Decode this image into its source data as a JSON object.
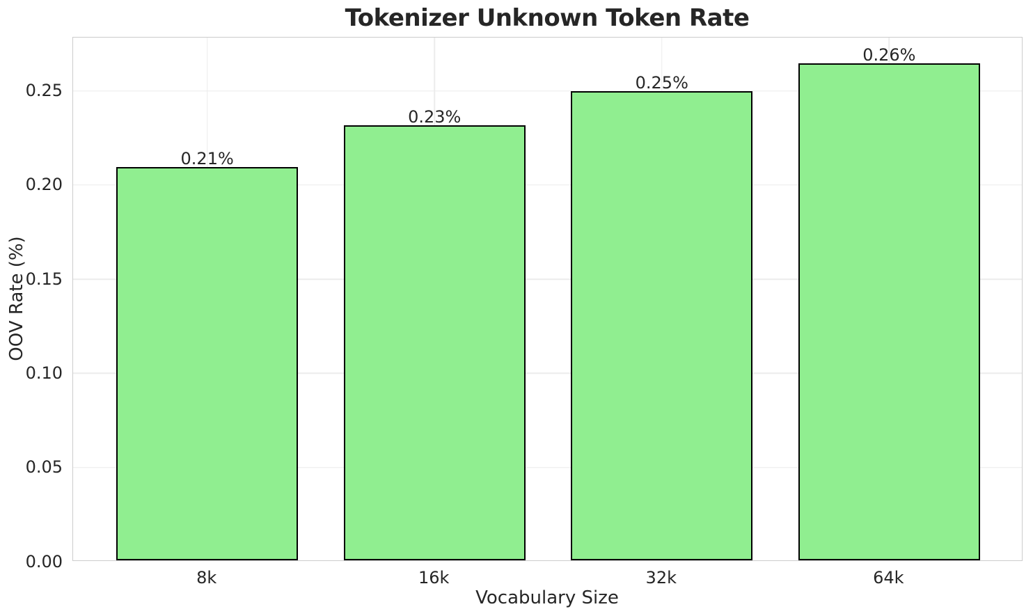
{
  "chart_data": {
    "type": "bar",
    "title": "Tokenizer Unknown Token Rate",
    "xlabel": "Vocabulary Size",
    "ylabel": "OOV Rate (%)",
    "categories": [
      "8k",
      "16k",
      "32k",
      "64k"
    ],
    "values": [
      0.209,
      0.231,
      0.249,
      0.264
    ],
    "bar_labels": [
      "0.21%",
      "0.23%",
      "0.25%",
      "0.26%"
    ],
    "yticks": [
      {
        "value": 0.0,
        "label": "0.00"
      },
      {
        "value": 0.05,
        "label": "0.05"
      },
      {
        "value": 0.1,
        "label": "0.10"
      },
      {
        "value": 0.15,
        "label": "0.15"
      },
      {
        "value": 0.2,
        "label": "0.20"
      },
      {
        "value": 0.25,
        "label": "0.25"
      }
    ],
    "ylim": [
      0,
      0.2783
    ],
    "grid": true,
    "legend": "none",
    "colors": {
      "bar_fill": "#90EE90",
      "bar_edge": "#000000",
      "grid_color": "#ececec",
      "spine_color": "#cccccc",
      "text_color": "#262626",
      "background": "#ffffff"
    }
  }
}
